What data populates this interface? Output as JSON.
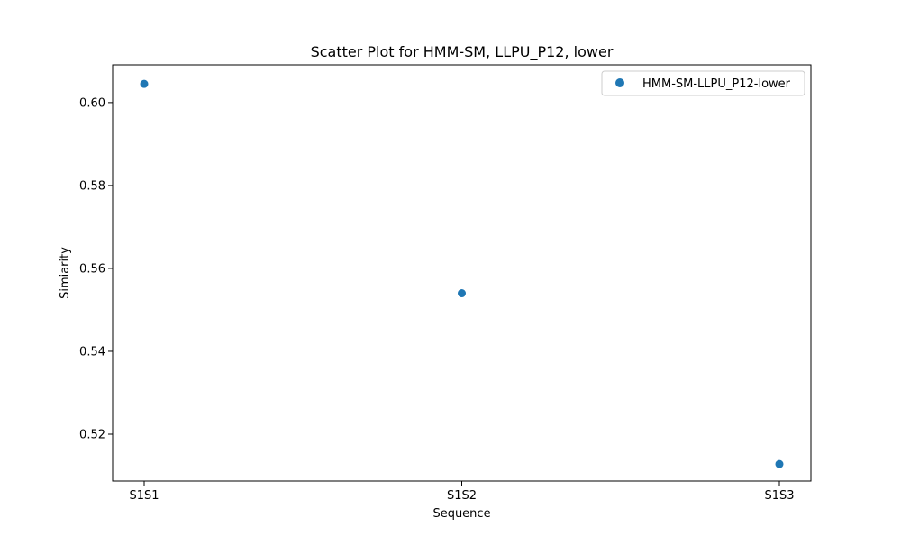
{
  "chart_data": {
    "type": "scatter",
    "title": "Scatter Plot for HMM-SM, LLPU_P12, lower",
    "xlabel": "Sequence",
    "ylabel": "Simiarity",
    "categories": [
      "S1S1",
      "S1S2",
      "S1S3"
    ],
    "series": [
      {
        "name": "HMM-SM-LLPU_P12-lower",
        "color": "#1f77b4",
        "values": [
          0.6045,
          0.554,
          0.5128
        ]
      }
    ],
    "ylim": [
      0.5087,
      0.6091
    ],
    "yticks": [
      0.52,
      0.54,
      0.56,
      0.58,
      0.6
    ],
    "ytick_labels": [
      "0.52",
      "0.54",
      "0.56",
      "0.58",
      "0.60"
    ],
    "grid": false,
    "legend_position": "top-right"
  }
}
